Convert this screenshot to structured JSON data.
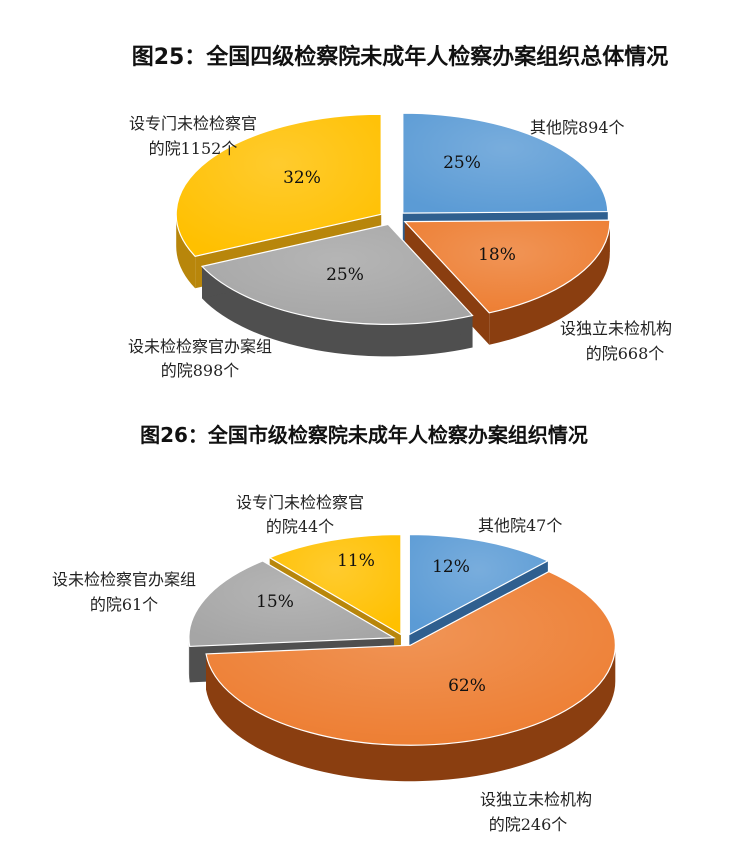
{
  "chart_data": [
    {
      "type": "pie",
      "title": "图25：全国四级检察院未成年人检察办案组织总体情况",
      "slices": [
        {
          "pct_label": "25%",
          "label_lines": [
            "其他院894个"
          ],
          "value": 894,
          "color": "#5B9BD5",
          "side": "#2F5F8F"
        },
        {
          "pct_label": "18%",
          "label_lines": [
            "设独立未检机构",
            "的院668个"
          ],
          "value": 668,
          "color": "#ED7D31",
          "side": "#8A3E10"
        },
        {
          "pct_label": "25%",
          "label_lines": [
            "设未检检察官办案组",
            "的院898个"
          ],
          "value": 898,
          "color": "#A5A5A5",
          "side": "#4F4F4F"
        },
        {
          "pct_label": "32%",
          "label_lines": [
            "设专门未检检察官",
            "的院1152个"
          ],
          "value": 1152,
          "color": "#FFC000",
          "side": "#B8860B"
        }
      ]
    },
    {
      "type": "pie",
      "title": "图26：全国市级检察院未成年人检察办案组织情况",
      "slices": [
        {
          "pct_label": "12%",
          "label_lines": [
            "其他院47个"
          ],
          "value": 47,
          "color": "#5B9BD5",
          "side": "#2F5F8F"
        },
        {
          "pct_label": "62%",
          "label_lines": [
            "设独立未检机构",
            "的院246个"
          ],
          "value": 246,
          "color": "#ED7D31",
          "side": "#8A3E10"
        },
        {
          "pct_label": "15%",
          "label_lines": [
            "设未检检察官办案组",
            "的院61个"
          ],
          "value": 61,
          "color": "#A5A5A5",
          "side": "#4F4F4F"
        },
        {
          "pct_label": "11%",
          "label_lines": [
            "设专门未检检察官",
            "的院44个"
          ],
          "value": 44,
          "color": "#FFC000",
          "side": "#B8860B"
        }
      ]
    }
  ]
}
